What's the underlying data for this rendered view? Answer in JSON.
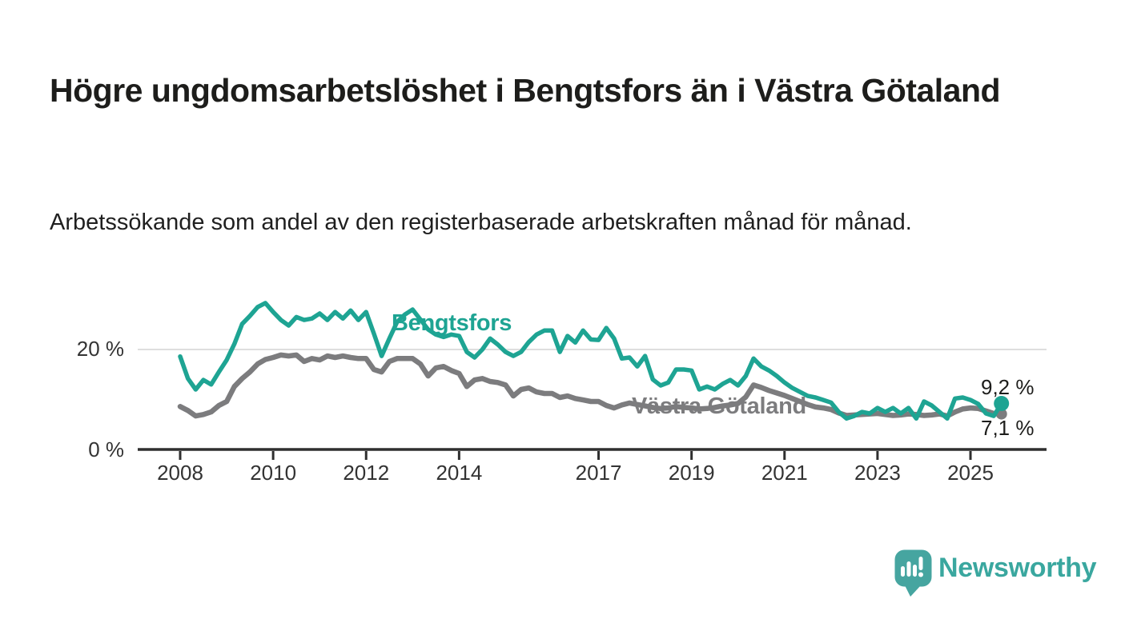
{
  "header": {
    "title": "Högre ungdomsarbetslöshet i Bengtsfors än i Västra Götaland",
    "subtitle": "Arbetssökande som andel av den registerbaserade arbetskraften månad för månad."
  },
  "footer": {
    "brand": "Newsworthy",
    "logo_icon": "bar-chart-speech-bubble-icon"
  },
  "colors": {
    "accent_teal": "#1ea493",
    "series_gray": "#7c7c7e",
    "gridline": "#dedede",
    "axis": "#2f2f2f",
    "tick_text": "#333333",
    "text_dark": "#1d1d1b",
    "logo_bubble": "#46a5a0",
    "logo_text": "#3aa79f"
  },
  "chart_data": {
    "type": "line",
    "description": "Arbetssökande som andel av den registerbaserade arbetskraften, månadsvis",
    "unit": "%",
    "x_start_year": 2008,
    "x_step_years": 0.1666667,
    "x_end_year": 2025.67,
    "ylim": [
      0,
      32
    ],
    "grid": "single horizontal gridline at 20 %",
    "legend_position": "inline-labels-on-lines",
    "y_ticks": [
      {
        "label": "0 %",
        "value": 0
      },
      {
        "label": "20 %",
        "value": 20
      }
    ],
    "x_ticks": [
      {
        "label": "2008",
        "year": 2008
      },
      {
        "label": "2010",
        "year": 2010
      },
      {
        "label": "2012",
        "year": 2012
      },
      {
        "label": "2014",
        "year": 2014
      },
      {
        "label": "2017",
        "year": 2017
      },
      {
        "label": "2019",
        "year": 2019
      },
      {
        "label": "2021",
        "year": 2021
      },
      {
        "label": "2023",
        "year": 2023
      },
      {
        "label": "2025",
        "year": 2025
      }
    ],
    "series": [
      {
        "name": "Västra Götaland",
        "color": "#7c7c7e",
        "end_label": "7,1 %",
        "end_value": 7.1,
        "values": [
          8.6,
          7.8,
          6.7,
          7.0,
          7.5,
          8.8,
          9.6,
          12.6,
          14.2,
          15.5,
          17.1,
          18.0,
          18.4,
          18.9,
          18.7,
          18.9,
          17.6,
          18.2,
          17.9,
          18.7,
          18.4,
          18.7,
          18.4,
          18.2,
          18.2,
          16.0,
          15.5,
          17.6,
          18.2,
          18.2,
          18.2,
          17.1,
          14.7,
          16.3,
          16.6,
          15.8,
          15.2,
          12.6,
          13.9,
          14.2,
          13.6,
          13.4,
          12.9,
          10.7,
          12.0,
          12.3,
          11.5,
          11.2,
          11.2,
          10.4,
          10.7,
          10.2,
          9.9,
          9.6,
          9.6,
          8.8,
          8.3,
          8.9,
          9.3,
          9.0,
          8.7,
          8.4,
          8.2,
          8.3,
          8.6,
          8.4,
          8.3,
          8.1,
          8.2,
          8.4,
          8.7,
          8.9,
          9.2,
          10.5,
          12.9,
          12.4,
          11.8,
          11.3,
          10.8,
          10.2,
          9.6,
          9.0,
          8.5,
          8.3,
          8.0,
          7.3,
          6.8,
          6.9,
          7.0,
          7.1,
          7.2,
          7.0,
          6.8,
          6.9,
          7.1,
          7.0,
          6.8,
          6.9,
          7.1,
          6.7,
          7.5,
          8.1,
          8.3,
          8.2,
          7.7,
          7.2,
          7.1
        ]
      },
      {
        "name": "Bengtsfors",
        "color": "#1ea493",
        "end_label": "9,2 %",
        "end_value": 9.2,
        "values": [
          18.6,
          14.2,
          12.0,
          13.9,
          13.0,
          15.5,
          17.9,
          21.1,
          25.1,
          26.7,
          28.5,
          29.3,
          27.5,
          25.9,
          24.8,
          26.5,
          25.9,
          26.2,
          27.2,
          25.9,
          27.5,
          26.2,
          27.8,
          25.9,
          27.5,
          23.2,
          18.7,
          22.2,
          25.5,
          27.0,
          28.0,
          26.0,
          24.0,
          23.0,
          22.5,
          23.0,
          22.7,
          19.5,
          18.4,
          20.0,
          22.2,
          21.0,
          19.5,
          18.7,
          19.5,
          21.5,
          23.0,
          23.8,
          23.8,
          19.5,
          22.7,
          21.4,
          23.8,
          22.0,
          21.9,
          24.3,
          22.2,
          18.2,
          18.4,
          16.6,
          18.7,
          14.0,
          12.8,
          13.4,
          16.0,
          16.0,
          15.8,
          12.0,
          12.6,
          12.0,
          13.1,
          13.9,
          12.8,
          14.7,
          18.2,
          16.6,
          15.8,
          14.7,
          13.4,
          12.3,
          11.5,
          10.7,
          10.4,
          9.9,
          9.4,
          7.5,
          6.2,
          6.7,
          7.5,
          7.2,
          8.3,
          7.5,
          8.3,
          7.2,
          8.3,
          6.2,
          9.6,
          8.8,
          7.5,
          6.2,
          10.2,
          10.4,
          9.9,
          9.1,
          7.2,
          6.7,
          9.2
        ]
      }
    ]
  }
}
